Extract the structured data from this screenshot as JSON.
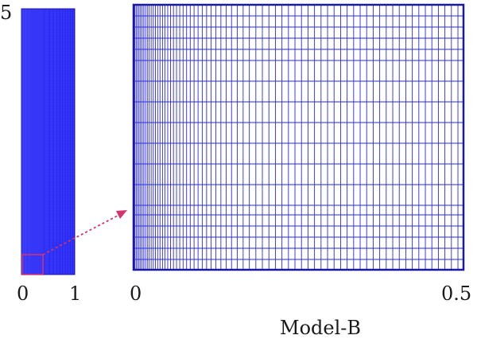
{
  "left_panel": {
    "y_top_label": "5",
    "x_min_label": "0",
    "x_max_label": "1"
  },
  "right_panel": {
    "x_min_label": "0",
    "x_max_label": "0.5"
  },
  "caption": "Model-B",
  "colors": {
    "mesh": "#2a2ae6",
    "mesh_dark": "#1a1aa0",
    "zoom_marker": "#d6336c"
  }
}
